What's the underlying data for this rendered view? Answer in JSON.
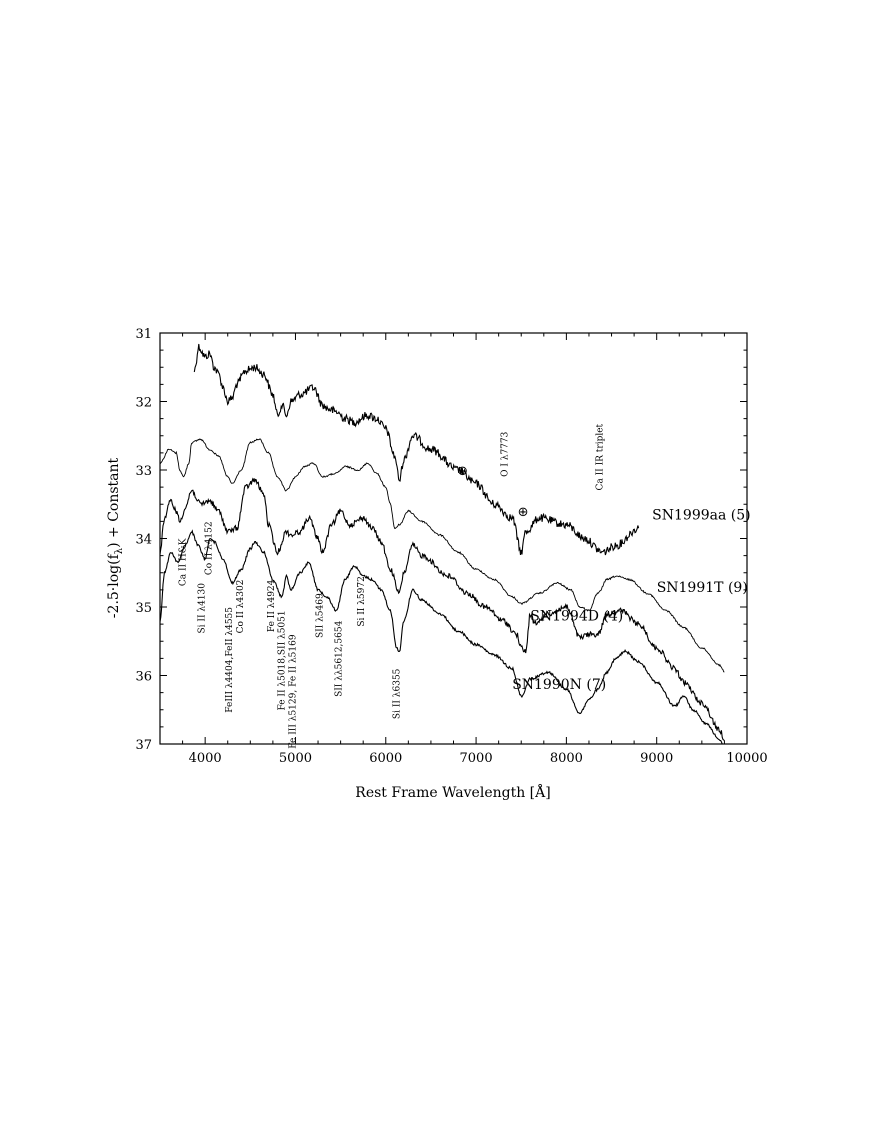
{
  "chart_data": {
    "type": "line",
    "title": "",
    "xlabel": "Rest Frame Wavelength [Å]",
    "ylabel": "-2.5·log(f",
    "ylabel_sub": "λ",
    "ylabel_tail": ") + Constant",
    "xlim": [
      3500,
      10000
    ],
    "ylim": [
      37,
      31
    ],
    "y_inverted": true,
    "grid": false,
    "x_ticks": [
      4000,
      5000,
      6000,
      7000,
      8000,
      9000,
      10000
    ],
    "y_ticks": [
      31,
      32,
      33,
      34,
      35,
      36,
      37
    ],
    "series": [
      {
        "name": "SN1999aa (5)",
        "noise": 0.06,
        "points": [
          [
            3880,
            31.55
          ],
          [
            3930,
            31.2
          ],
          [
            4000,
            31.35
          ],
          [
            4050,
            31.3
          ],
          [
            4100,
            31.5
          ],
          [
            4150,
            31.6
          ],
          [
            4200,
            31.8
          ],
          [
            4250,
            32.0
          ],
          [
            4300,
            31.95
          ],
          [
            4350,
            31.75
          ],
          [
            4450,
            31.55
          ],
          [
            4550,
            31.5
          ],
          [
            4650,
            31.6
          ],
          [
            4750,
            31.9
          ],
          [
            4800,
            32.2
          ],
          [
            4850,
            32.05
          ],
          [
            4900,
            32.2
          ],
          [
            4950,
            32.0
          ],
          [
            5050,
            31.9
          ],
          [
            5200,
            31.8
          ],
          [
            5300,
            32.05
          ],
          [
            5350,
            32.1
          ],
          [
            5450,
            32.15
          ],
          [
            5550,
            32.25
          ],
          [
            5650,
            32.3
          ],
          [
            5800,
            32.2
          ],
          [
            5900,
            32.25
          ],
          [
            6000,
            32.4
          ],
          [
            6100,
            32.8
          ],
          [
            6150,
            33.15
          ],
          [
            6200,
            32.85
          ],
          [
            6300,
            32.5
          ],
          [
            6500,
            32.7
          ],
          [
            6800,
            33.0
          ],
          [
            7000,
            33.2
          ],
          [
            7200,
            33.5
          ],
          [
            7400,
            33.7
          ],
          [
            7500,
            34.2
          ],
          [
            7550,
            33.9
          ],
          [
            7700,
            33.7
          ],
          [
            8000,
            33.8
          ],
          [
            8200,
            34.0
          ],
          [
            8400,
            34.2
          ],
          [
            8550,
            34.1
          ],
          [
            8800,
            33.85
          ]
        ]
      },
      {
        "name": "SN1991T (9)",
        "noise": 0.012,
        "points": [
          [
            3500,
            32.9
          ],
          [
            3600,
            32.7
          ],
          [
            3680,
            32.75
          ],
          [
            3720,
            33.0
          ],
          [
            3760,
            33.1
          ],
          [
            3820,
            32.9
          ],
          [
            3850,
            32.6
          ],
          [
            3950,
            32.55
          ],
          [
            4050,
            32.7
          ],
          [
            4150,
            32.8
          ],
          [
            4250,
            33.1
          ],
          [
            4300,
            33.2
          ],
          [
            4400,
            33.0
          ],
          [
            4500,
            32.6
          ],
          [
            4600,
            32.55
          ],
          [
            4700,
            32.75
          ],
          [
            4800,
            33.1
          ],
          [
            4900,
            33.3
          ],
          [
            5000,
            33.1
          ],
          [
            5100,
            32.95
          ],
          [
            5200,
            32.9
          ],
          [
            5300,
            33.1
          ],
          [
            5450,
            33.05
          ],
          [
            5550,
            32.95
          ],
          [
            5700,
            33.0
          ],
          [
            5800,
            32.9
          ],
          [
            5900,
            33.05
          ],
          [
            6000,
            33.25
          ],
          [
            6050,
            33.5
          ],
          [
            6100,
            33.85
          ],
          [
            6150,
            33.8
          ],
          [
            6250,
            33.6
          ],
          [
            6400,
            33.75
          ],
          [
            6600,
            33.95
          ],
          [
            6800,
            34.2
          ],
          [
            7000,
            34.45
          ],
          [
            7200,
            34.6
          ],
          [
            7400,
            34.85
          ],
          [
            7500,
            34.95
          ],
          [
            7700,
            34.8
          ],
          [
            7900,
            34.65
          ],
          [
            8050,
            34.75
          ],
          [
            8150,
            35.0
          ],
          [
            8250,
            35.05
          ],
          [
            8350,
            34.8
          ],
          [
            8450,
            34.6
          ],
          [
            8550,
            34.55
          ],
          [
            8700,
            34.6
          ],
          [
            8900,
            34.8
          ],
          [
            9100,
            35.05
          ],
          [
            9300,
            35.3
          ],
          [
            9500,
            35.6
          ],
          [
            9700,
            35.85
          ],
          [
            9750,
            35.95
          ]
        ]
      },
      {
        "name": "SN1994D (4)",
        "noise": 0.04,
        "points": [
          [
            3500,
            34.2
          ],
          [
            3550,
            33.7
          ],
          [
            3620,
            33.45
          ],
          [
            3680,
            33.6
          ],
          [
            3720,
            33.75
          ],
          [
            3780,
            33.55
          ],
          [
            3850,
            33.3
          ],
          [
            3950,
            33.5
          ],
          [
            4050,
            33.45
          ],
          [
            4150,
            33.6
          ],
          [
            4250,
            33.9
          ],
          [
            4350,
            33.85
          ],
          [
            4450,
            33.25
          ],
          [
            4550,
            33.15
          ],
          [
            4650,
            33.35
          ],
          [
            4700,
            33.8
          ],
          [
            4800,
            34.2
          ],
          [
            4900,
            33.9
          ],
          [
            4950,
            33.95
          ],
          [
            5050,
            33.9
          ],
          [
            5150,
            33.7
          ],
          [
            5250,
            34.0
          ],
          [
            5300,
            34.2
          ],
          [
            5400,
            33.8
          ],
          [
            5500,
            33.6
          ],
          [
            5600,
            33.8
          ],
          [
            5750,
            33.7
          ],
          [
            5850,
            33.85
          ],
          [
            5950,
            34.05
          ],
          [
            6050,
            34.45
          ],
          [
            6150,
            34.8
          ],
          [
            6200,
            34.5
          ],
          [
            6300,
            34.1
          ],
          [
            6400,
            34.25
          ],
          [
            6700,
            34.55
          ],
          [
            6900,
            34.8
          ],
          [
            7100,
            35.0
          ],
          [
            7300,
            35.2
          ],
          [
            7450,
            35.4
          ],
          [
            7500,
            35.6
          ],
          [
            7550,
            35.65
          ],
          [
            7600,
            35.1
          ],
          [
            7650,
            35.25
          ],
          [
            7800,
            35.1
          ],
          [
            8000,
            35.0
          ],
          [
            8150,
            35.45
          ],
          [
            8250,
            35.4
          ],
          [
            8350,
            35.4
          ],
          [
            8450,
            35.1
          ],
          [
            8600,
            35.05
          ],
          [
            8800,
            35.25
          ],
          [
            9000,
            35.6
          ],
          [
            9200,
            35.9
          ],
          [
            9300,
            36.1
          ],
          [
            9500,
            36.4
          ],
          [
            9700,
            36.8
          ],
          [
            9750,
            36.95
          ]
        ]
      },
      {
        "name": "SN1990N (7)",
        "noise": 0.018,
        "points": [
          [
            3500,
            35.2
          ],
          [
            3550,
            34.5
          ],
          [
            3620,
            34.2
          ],
          [
            3700,
            34.35
          ],
          [
            3780,
            34.1
          ],
          [
            3850,
            33.9
          ],
          [
            3920,
            34.1
          ],
          [
            4000,
            34.3
          ],
          [
            4050,
            34.0
          ],
          [
            4100,
            34.05
          ],
          [
            4200,
            34.3
          ],
          [
            4300,
            34.65
          ],
          [
            4400,
            34.45
          ],
          [
            4500,
            34.15
          ],
          [
            4550,
            34.05
          ],
          [
            4650,
            34.2
          ],
          [
            4750,
            34.6
          ],
          [
            4850,
            34.85
          ],
          [
            4900,
            34.55
          ],
          [
            4950,
            34.75
          ],
          [
            5050,
            34.5
          ],
          [
            5150,
            34.35
          ],
          [
            5250,
            34.75
          ],
          [
            5350,
            34.85
          ],
          [
            5450,
            35.05
          ],
          [
            5550,
            34.6
          ],
          [
            5650,
            34.4
          ],
          [
            5750,
            34.55
          ],
          [
            5850,
            34.6
          ],
          [
            5950,
            34.75
          ],
          [
            6050,
            35.05
          ],
          [
            6120,
            35.6
          ],
          [
            6150,
            35.65
          ],
          [
            6200,
            35.2
          ],
          [
            6300,
            34.75
          ],
          [
            6400,
            34.9
          ],
          [
            6600,
            35.1
          ],
          [
            6800,
            35.35
          ],
          [
            7000,
            35.55
          ],
          [
            7200,
            35.7
          ],
          [
            7400,
            35.9
          ],
          [
            7500,
            36.3
          ],
          [
            7600,
            36.05
          ],
          [
            7800,
            35.95
          ],
          [
            8000,
            36.2
          ],
          [
            8150,
            36.55
          ],
          [
            8250,
            36.35
          ],
          [
            8350,
            36.2
          ],
          [
            8450,
            35.95
          ],
          [
            8550,
            35.75
          ],
          [
            8650,
            35.65
          ],
          [
            8800,
            35.8
          ],
          [
            9000,
            36.1
          ],
          [
            9200,
            36.45
          ],
          [
            9300,
            36.3
          ],
          [
            9400,
            36.5
          ],
          [
            9550,
            36.7
          ],
          [
            9700,
            36.95
          ],
          [
            9750,
            37.05
          ]
        ]
      }
    ],
    "series_labels": [
      {
        "text": "SN1999aa (5)",
        "x": 8950,
        "y": 33.72,
        "weight": "normal"
      },
      {
        "text": "SN1991T (9)",
        "x": 9000,
        "y": 34.78,
        "weight": "mixed"
      },
      {
        "text": "SN1994D (4)",
        "x": 7600,
        "y": 35.2,
        "weight": "normal"
      },
      {
        "text": "SN1990N (7)",
        "x": 7400,
        "y": 36.2,
        "weight": "normal"
      }
    ],
    "line_annotations": [
      {
        "text": "Ca II H&K",
        "x": 3780,
        "y": 34.0,
        "dir": "down"
      },
      {
        "text": "Co II λ4152",
        "x": 4070,
        "y": 33.75,
        "dir": "down"
      },
      {
        "text": "Si II λ4130",
        "x": 3990,
        "y": 34.65,
        "dir": "down"
      },
      {
        "text": "FeIII λ4404,FeII λ4555",
        "x": 4300,
        "y": 35.0,
        "dir": "down"
      },
      {
        "text": "Co II λ4302",
        "x": 4420,
        "y": 34.6,
        "dir": "down"
      },
      {
        "text": "Fe II λ4924",
        "x": 4760,
        "y": 34.6,
        "dir": "down"
      },
      {
        "text": "Fe II λ5018,SII λ5051",
        "x": 4880,
        "y": 35.05,
        "dir": "down"
      },
      {
        "text": "Fe III λ5129, Fe II λ5169",
        "x": 5000,
        "y": 35.4,
        "dir": "down"
      },
      {
        "text": "SII λ5469",
        "x": 5300,
        "y": 34.8,
        "dir": "down"
      },
      {
        "text": "SII λλ5612,5654",
        "x": 5510,
        "y": 35.2,
        "dir": "down"
      },
      {
        "text": "Si II λ5972",
        "x": 5760,
        "y": 34.55,
        "dir": "down"
      },
      {
        "text": "Si II λ6355",
        "x": 6150,
        "y": 35.9,
        "dir": "down"
      },
      {
        "text": "O I λ7773",
        "x": 7350,
        "y": 33.1,
        "dir": "up"
      },
      {
        "text": "Ca II IR triplet",
        "x": 8400,
        "y": 33.3,
        "dir": "up"
      }
    ],
    "telluric_markers": [
      {
        "symbol": "⊕",
        "x": 6850,
        "y": 33.0
      },
      {
        "symbol": "⊕",
        "x": 7520,
        "y": 33.6
      }
    ]
  }
}
